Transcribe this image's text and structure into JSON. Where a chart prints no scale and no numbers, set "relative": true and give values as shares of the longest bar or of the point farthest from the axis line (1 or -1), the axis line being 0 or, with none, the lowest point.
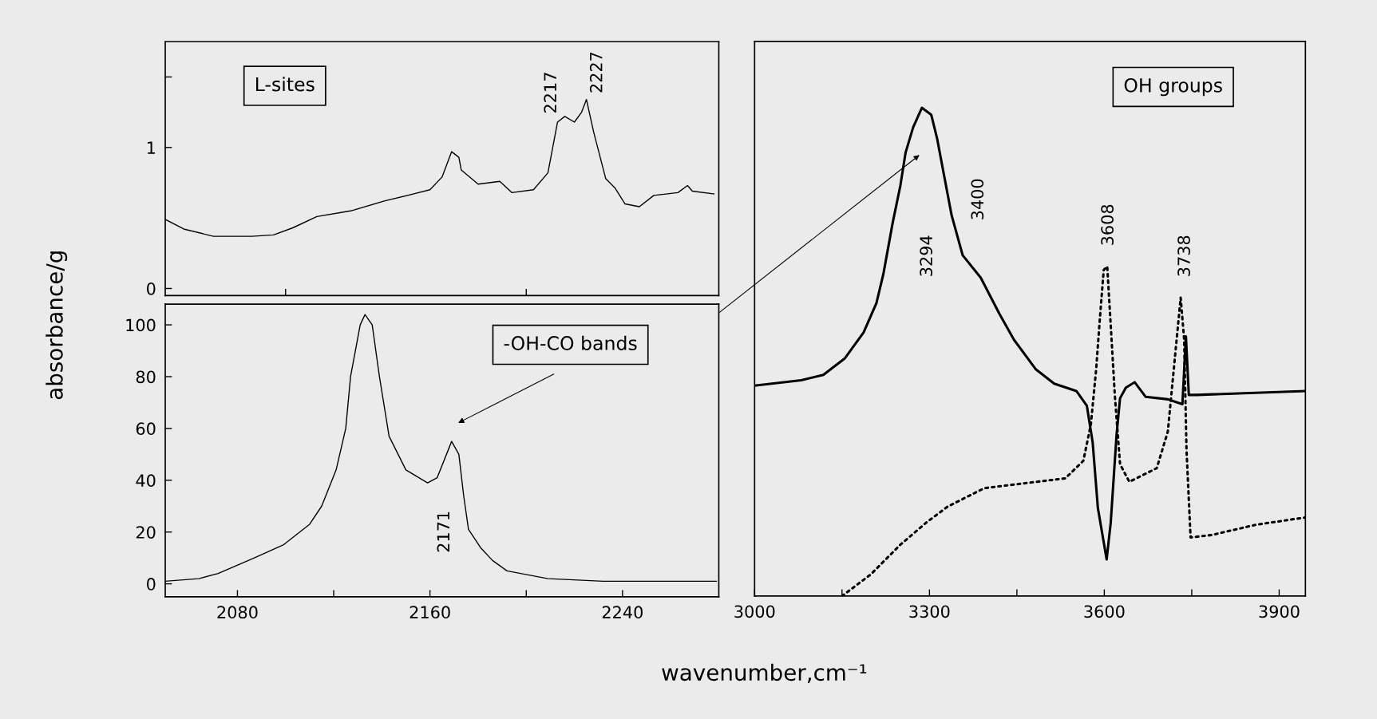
{
  "chart_data": [
    {
      "type": "line",
      "ylabel": "absorbance/g",
      "x": [
        2050,
        2058,
        2070,
        2086,
        2095,
        2103,
        2113,
        2127,
        2141,
        2153,
        2160,
        2165,
        2169,
        2172,
        2173,
        2180,
        2189,
        2194,
        2203,
        2209,
        2213,
        2216,
        2220,
        2223,
        2225,
        2228,
        2233,
        2237,
        2241,
        2247,
        2253,
        2263,
        2267,
        2269,
        2278
      ],
      "series": [
        {
          "color": "#000000",
          "values": [
            0.49,
            0.42,
            0.37,
            0.37,
            0.38,
            0.43,
            0.51,
            0.55,
            0.62,
            0.67,
            0.7,
            0.79,
            0.97,
            0.93,
            0.84,
            0.74,
            0.76,
            0.68,
            0.7,
            0.82,
            1.18,
            1.22,
            1.18,
            1.25,
            1.34,
            1.11,
            0.78,
            0.71,
            0.6,
            0.58,
            0.66,
            0.68,
            0.73,
            0.69,
            0.67
          ]
        }
      ],
      "xlim": [
        2050,
        2280
      ],
      "xticks": [
        {
          "value": 2100,
          "label": null
        },
        {
          "value": 2200,
          "label": null
        }
      ],
      "ylim": [
        -0.05,
        1.75
      ],
      "yticks": [
        0,
        1,
        {
          "value": 1.5,
          "label": null
        }
      ],
      "tick_labels": "y",
      "annotations": [
        "L-sites",
        "2217",
        "2227"
      ]
    },
    {
      "type": "line",
      "xlabel": "wavenumber,cm⁻¹",
      "x": [
        2050,
        2064,
        2072,
        2087,
        2099,
        2110,
        2115,
        2121,
        2125,
        2127,
        2131,
        2133,
        2136,
        2139,
        2143,
        2150,
        2159,
        2163,
        2169,
        2172,
        2174,
        2176,
        2181,
        2186,
        2192,
        2209,
        2232,
        2279
      ],
      "series": [
        {
          "color": "#000000",
          "values": [
            1,
            2,
            4,
            10,
            15,
            23,
            30,
            44,
            60,
            80,
            100,
            104,
            100,
            80,
            57,
            44,
            39,
            41,
            55,
            50,
            34,
            21,
            14,
            9,
            5,
            2,
            1,
            1
          ]
        }
      ],
      "xlim": [
        2050,
        2280
      ],
      "xticks": [
        2080,
        {
          "value": 2120,
          "label": null
        },
        2160,
        {
          "value": 2200,
          "label": null
        },
        2240
      ],
      "ylim": [
        -5,
        108
      ],
      "yticks": [
        0,
        20,
        40,
        60,
        80,
        100
      ],
      "annotations": [
        "2171",
        "-OH-CO bands"
      ]
    },
    {
      "type": "line",
      "relative": true,
      "series": [
        {
          "color": "#000000",
          "line_style": "solid",
          "x": [
            3000,
            3080,
            3118,
            3155,
            3187,
            3209,
            3221,
            3237,
            3250,
            3259,
            3272,
            3287,
            3303,
            3313,
            3325,
            3338,
            3357,
            3388,
            3420,
            3445,
            3482,
            3514,
            3552,
            3570,
            3580,
            3589,
            3604,
            3611,
            3621,
            3627,
            3637,
            3652,
            3671,
            3709,
            3734,
            3740,
            3745,
            3759,
            3945
          ],
          "values": [
            0.431,
            0.442,
            0.453,
            0.487,
            0.54,
            0.6,
            0.66,
            0.765,
            0.84,
            0.908,
            0.96,
            1.0,
            0.986,
            0.938,
            0.862,
            0.78,
            0.698,
            0.652,
            0.578,
            0.525,
            0.465,
            0.435,
            0.42,
            0.39,
            0.315,
            0.18,
            0.075,
            0.15,
            0.33,
            0.405,
            0.427,
            0.438,
            0.408,
            0.403,
            0.393,
            0.532,
            0.412,
            0.412,
            0.42
          ]
        },
        {
          "color": "#000000",
          "line_style": "dotted",
          "x": [
            3150,
            3199,
            3250,
            3294,
            3331,
            3394,
            3470,
            3533,
            3564,
            3577,
            3586,
            3592,
            3599,
            3605,
            3611,
            3618,
            3627,
            3643,
            3690,
            3709,
            3721,
            3731,
            3737,
            3741,
            3748,
            3784,
            3860,
            3945
          ],
          "values": [
            0,
            0.044,
            0.105,
            0.15,
            0.183,
            0.221,
            0.232,
            0.241,
            0.277,
            0.352,
            0.464,
            0.562,
            0.668,
            0.675,
            0.555,
            0.412,
            0.27,
            0.234,
            0.262,
            0.337,
            0.487,
            0.611,
            0.525,
            0.3,
            0.12,
            0.125,
            0.146,
            0.161
          ]
        }
      ],
      "xlim": [
        3000,
        3945
      ],
      "xticks": [
        3000,
        {
          "value": 3150,
          "label": null
        },
        3300,
        {
          "value": 3450,
          "label": null
        },
        3600,
        {
          "value": 3750,
          "label": null
        },
        3900
      ],
      "tick_labels": "x",
      "annotations": [
        "OH groups",
        "3294",
        "3400",
        "3608",
        "3738"
      ]
    }
  ]
}
